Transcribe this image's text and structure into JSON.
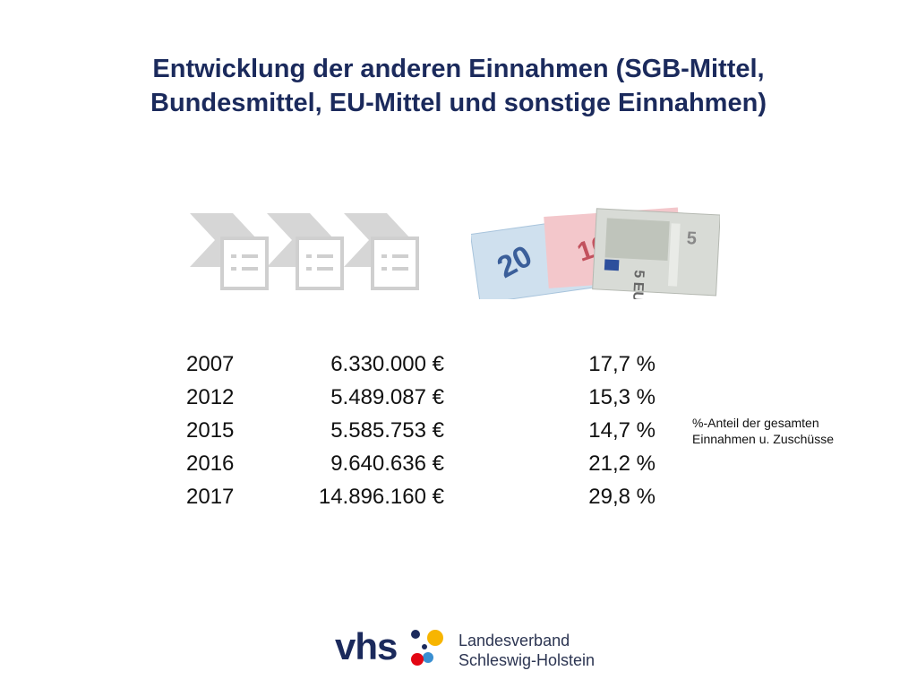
{
  "title": {
    "line1": "Entwicklung der anderen Einnahmen (SGB-Mittel,",
    "line2": "Bundesmittel, EU-Mittel und sonstige Einnahmen)"
  },
  "rows": [
    {
      "year": "2007",
      "amount": "6.330.000 €",
      "percent": "17,7 %"
    },
    {
      "year": "2012",
      "amount": "5.489.087 €",
      "percent": "15,3 %"
    },
    {
      "year": "2015",
      "amount": "5.585.753 €",
      "percent": "14,7 %"
    },
    {
      "year": "2016",
      "amount": "9.640.636 €",
      "percent": "21,2 %"
    },
    {
      "year": "2017",
      "amount": "14.896.160 €",
      "percent": "29,8 %"
    }
  ],
  "note": {
    "line1": "%-Anteil der gesamten",
    "line2": "Einnahmen u. Zuschüsse"
  },
  "logo": {
    "brand": "vhs",
    "line1": "Landesverband",
    "line2": "Schleswig-Holstein"
  },
  "colors": {
    "title": "#1b2a5c",
    "icon_gray": "#d4d4d4",
    "logo_blue": "#1b2a5c",
    "logo_red": "#e30613",
    "logo_yellow": "#f7b500",
    "logo_lightblue": "#3a8fd1"
  },
  "icons": [
    "process-chevron-icon",
    "document-list-icon",
    "euro-banknotes-image"
  ]
}
